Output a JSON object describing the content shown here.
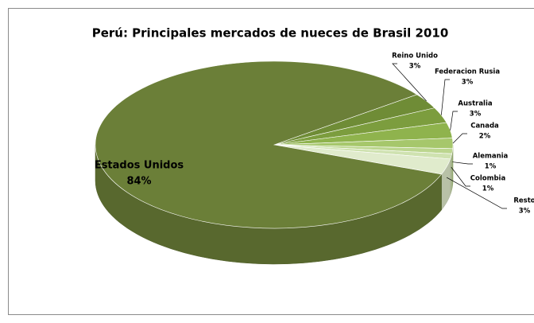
{
  "chart_data": {
    "type": "pie3d",
    "title": "Perú: Principales mercados de nueces de Brasil 2010",
    "categories": [
      "Estados Unidos",
      "Reino Unido",
      "Federacion Rusia",
      "Australia",
      "Canada",
      "Alemania",
      "Colombia",
      "Resto"
    ],
    "values": [
      84,
      3,
      3,
      3,
      2,
      1,
      1,
      3
    ],
    "value_labels": [
      "84%",
      "3%",
      "3%",
      "3%",
      "2%",
      "1%",
      "1%",
      "3%"
    ],
    "colors": [
      "#6b7f38",
      "#6f8c36",
      "#7c9d3e",
      "#8fb34d",
      "#a6c76b",
      "#bcd68f",
      "#cfe2b0",
      "#e0ebcc"
    ]
  }
}
